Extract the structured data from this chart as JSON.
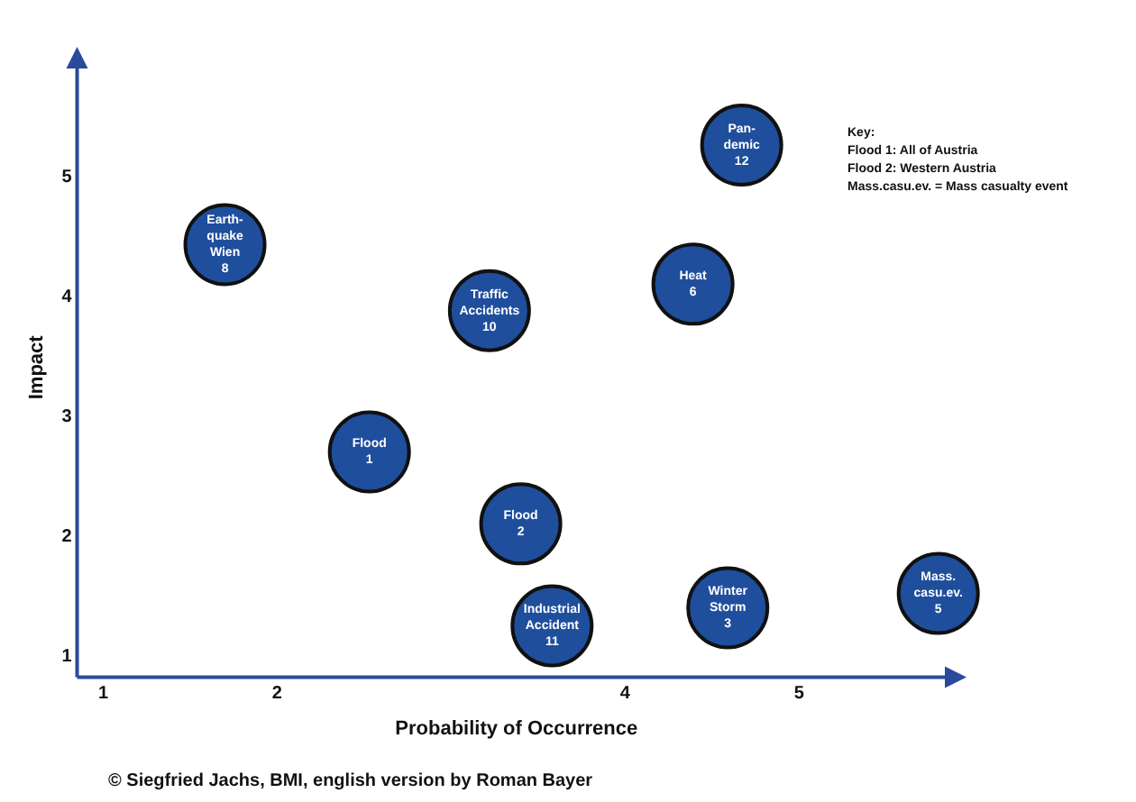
{
  "chart_data": {
    "type": "scatter",
    "xlabel": "Probability of Occurrence",
    "ylabel": "Impact",
    "x": [
      1.7,
      3.22,
      4.67,
      4.39,
      2.53,
      3.4,
      3.58,
      4.59,
      5.8
    ],
    "values": [
      4.44,
      3.89,
      5.27,
      4.11,
      2.71,
      2.11,
      1.26,
      1.41,
      1.53
    ],
    "color": "#1f4e9c",
    "marker": "circle",
    "grid": false,
    "legend": false,
    "xlim": [
      0.85,
      5.9
    ],
    "xticks": [
      1,
      2,
      4,
      5
    ],
    "ylim": [
      0.83,
      6
    ],
    "yticks": [
      1,
      2,
      3,
      4,
      5
    ],
    "annotations": [
      {
        "text": "Earth-\nquake\nWien\n8",
        "x": 1.7,
        "y": 4.44
      },
      {
        "text": "Traffic\nAccidents\n10",
        "x": 3.22,
        "y": 3.89
      },
      {
        "text": "Pan-\ndemic\n12",
        "x": 4.67,
        "y": 5.27
      },
      {
        "text": "Heat\n6",
        "x": 4.39,
        "y": 4.11
      },
      {
        "text": "Flood\n1",
        "x": 2.53,
        "y": 2.71
      },
      {
        "text": "Flood\n2",
        "x": 3.4,
        "y": 2.11
      },
      {
        "text": "Industrial\nAccident\n11",
        "x": 3.58,
        "y": 1.26
      },
      {
        "text": "Winter\nStorm\n3",
        "x": 4.59,
        "y": 1.41
      },
      {
        "text": "Mass.\ncasu.ev.\n5",
        "x": 5.8,
        "y": 1.53
      },
      "Key:",
      "Flood 1: All of Austria",
      "Flood 2: Western Austria",
      "Mass.casu.ev. = Mass casualty event",
      "© Siegfried Jachs, BMI, english version by Roman Bayer"
    ]
  }
}
